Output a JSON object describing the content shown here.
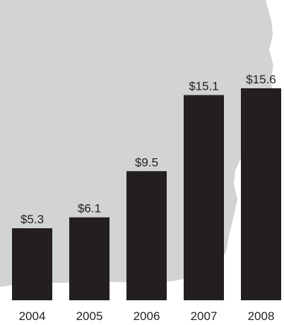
{
  "chart_data": {
    "type": "bar",
    "categories": [
      "2004",
      "2005",
      "2006",
      "2007",
      "2008"
    ],
    "values": [
      5.3,
      6.1,
      9.5,
      15.1,
      15.6
    ],
    "value_labels": [
      "$5.3",
      "$6.1",
      "$9.5",
      "$15.1",
      "$15.6"
    ],
    "title": "",
    "xlabel": "",
    "ylabel": "",
    "ylim": [
      0,
      17
    ],
    "grid": false,
    "legend": "none",
    "colors": {
      "bar": "#231f20",
      "background_shape": "#d1d3d4",
      "text": "#231f20"
    },
    "background_icon": "map-silhouette-icon"
  }
}
